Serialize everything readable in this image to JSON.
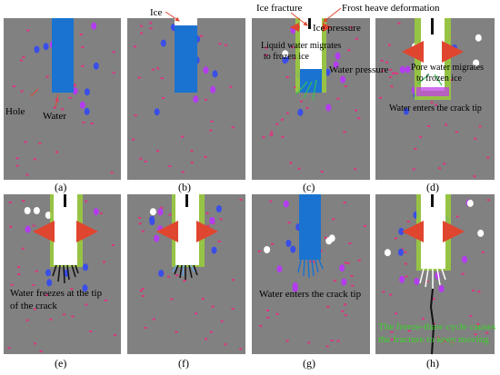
{
  "labels": {
    "ice": "Ice",
    "ice_fracture": "Ice fracture",
    "frost_heave": "Frost heave deformation",
    "ice_pressure": "Ice pressure",
    "liquid_water_line1": "Liquid water migrates",
    "liquid_water_line2": "to frozen ice",
    "water_pressure": "Water pressure",
    "pore_water_line1": "Pore water migrates",
    "pore_water_line2": "to frozen ice",
    "water_enters_d": "Water enters the crack tip",
    "hole": "Hole",
    "water": "Water",
    "freeze_tip_line1": "Water freezes at the tip",
    "freeze_tip_line2": "of the crack",
    "water_enters_g": "Water enters the crack tip",
    "cycle_line1": "The freeze-thaw cycle causes",
    "cycle_line2": "the fracture to keep moving"
  },
  "captions": [
    "(a)",
    "(b)",
    "(c)",
    "(d)",
    "(e)",
    "(f)",
    "(g)",
    "(h)"
  ],
  "colors": {
    "background": "#818181",
    "water": "#1a73d0",
    "ice": "#ffffff",
    "hole_pink": "#e0337f",
    "particle_purple": "#b43cf0",
    "particle_blue": "#3a4ee8",
    "frost_zone": "#9bcf3b",
    "arrow": "#e0452f",
    "crack": "#111111",
    "cycle_text": "#3bd12a"
  }
}
